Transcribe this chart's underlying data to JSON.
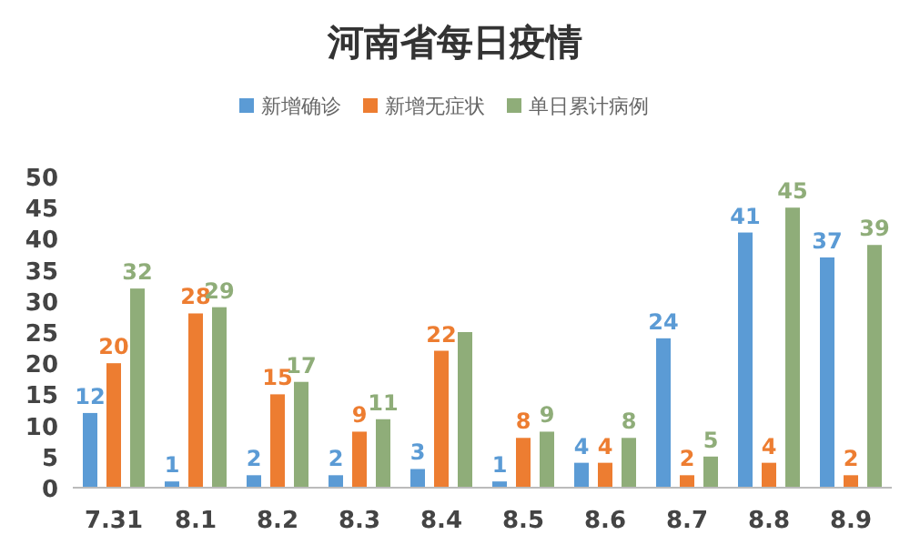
{
  "chart_data": {
    "type": "bar",
    "title": "河南省每日疫情",
    "categories": [
      "7.31",
      "8.1",
      "8.2",
      "8.3",
      "8.4",
      "8.5",
      "8.6",
      "8.7",
      "8.8",
      "8.9"
    ],
    "series": [
      {
        "name": "新增确诊",
        "color": "#5b9bd5",
        "values": [
          12,
          1,
          2,
          2,
          3,
          1,
          4,
          24,
          41,
          37
        ],
        "value_labels": [
          "12",
          "1",
          "2",
          "2",
          "3",
          "1",
          "4",
          "24",
          "41",
          "37"
        ]
      },
      {
        "name": "新增无症状",
        "color": "#ed7d31",
        "values": [
          20,
          28,
          15,
          9,
          22,
          8,
          4,
          2,
          4,
          2
        ],
        "value_labels": [
          "20",
          "28",
          "15",
          "9",
          "22",
          "8",
          "4",
          "2",
          "4",
          "2"
        ]
      },
      {
        "name": "单日累计病例",
        "color": "#8fad79",
        "values": [
          32,
          29,
          17,
          11,
          25,
          9,
          8,
          5,
          45,
          39
        ],
        "value_labels": [
          "32",
          "29",
          "17",
          "11",
          null,
          "9",
          "8",
          "5",
          "45",
          "39"
        ]
      }
    ],
    "ylim": [
      0,
      50
    ],
    "yticks": [
      0,
      5,
      10,
      15,
      20,
      25,
      30,
      35,
      40,
      45,
      50
    ],
    "legend": "top",
    "grid": false
  }
}
